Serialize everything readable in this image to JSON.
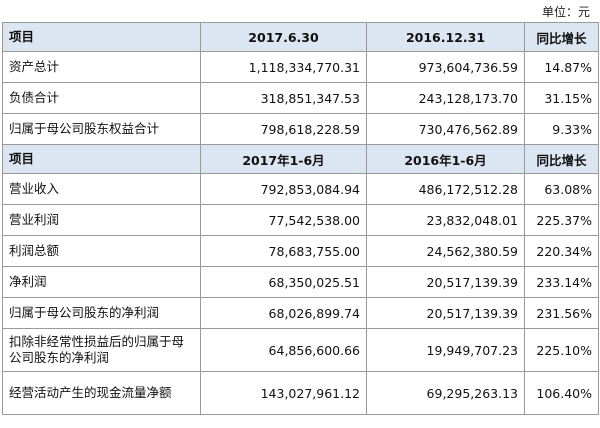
{
  "unit_label": "单位：元",
  "balance": {
    "header": [
      "项目",
      "2017.6.30",
      "2016.12.31",
      "同比增长"
    ],
    "rows": [
      [
        "资产总计",
        "1,118,334,770.31",
        "973,604,736.59",
        "14.87%"
      ],
      [
        "负债合计",
        "318,851,347.53",
        "243,128,173.70",
        "31.15%"
      ],
      [
        "归属于母公司股东权益合计",
        "798,618,228.59",
        "730,476,562.89",
        "9.33%"
      ]
    ]
  },
  "income": {
    "header": [
      "项目",
      "2017年1-6月",
      "2016年1-6月",
      "同比增长"
    ],
    "rows": [
      [
        "营业收入",
        "792,853,084.94",
        "486,172,512.28",
        "63.08%"
      ],
      [
        "营业利润",
        "77,542,538.00",
        "23,832,048.01",
        "225.37%"
      ],
      [
        "利润总额",
        "78,683,755.00",
        "24,562,380.59",
        "220.34%"
      ],
      [
        "净利润",
        "68,350,025.51",
        "20,517,139.39",
        "233.14%"
      ],
      [
        "归属于母公司股东的净利润",
        "68,026,899.74",
        "20,517,139.39",
        "231.56%"
      ],
      [
        "扣除非经常性损益后的归属于母公司股东的净利润",
        "64,856,600.66",
        "19,949,707.23",
        "225.10%"
      ],
      [
        "经营活动产生的现金流量净额",
        "143,027,961.12",
        "69,295,263.13",
        "106.40%"
      ]
    ]
  }
}
